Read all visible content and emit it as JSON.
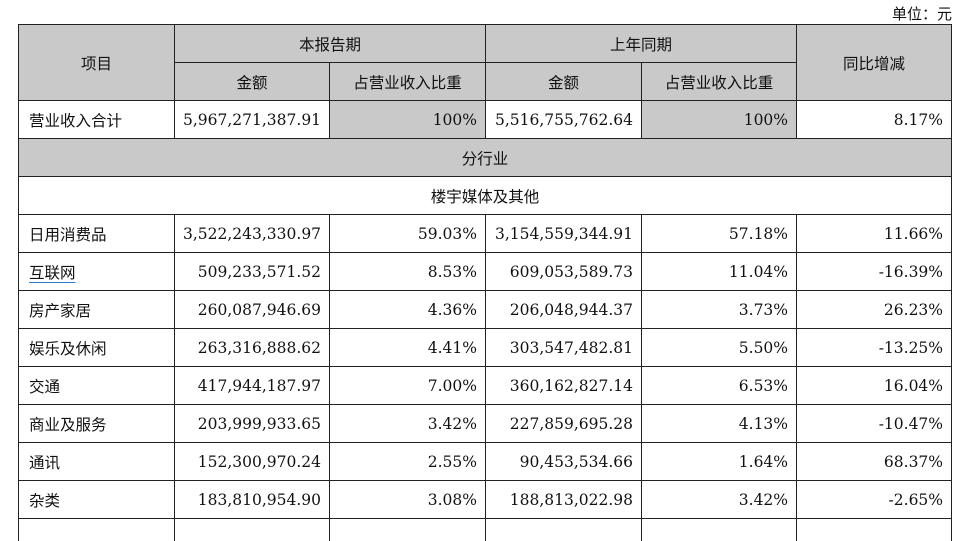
{
  "unit_label": "单位：元",
  "header": {
    "item": "项目",
    "current_period": "本报告期",
    "prior_period": "上年同期",
    "amount": "金额",
    "share": "占营业收入比重",
    "yoy": "同比增减"
  },
  "total": {
    "label": "营业收入合计",
    "cur_amount": "5,967,271,387.91",
    "cur_share": "100%",
    "prev_amount": "5,516,755,762.64",
    "prev_share": "100%",
    "yoy": "8.17%"
  },
  "section_industry": "分行业",
  "subsection": "楼宇媒体及其他",
  "rows": [
    {
      "label": "日用消费品",
      "cur_amount": "3,522,243,330.97",
      "cur_share": "59.03%",
      "prev_amount": "3,154,559,344.91",
      "prev_share": "57.18%",
      "yoy": "11.66%"
    },
    {
      "label": "互联网",
      "cur_amount": "509,233,571.52",
      "cur_share": "8.53%",
      "prev_amount": "609,053,589.73",
      "prev_share": "11.04%",
      "yoy": "-16.39%"
    },
    {
      "label": "房产家居",
      "cur_amount": "260,087,946.69",
      "cur_share": "4.36%",
      "prev_amount": "206,048,944.37",
      "prev_share": "3.73%",
      "yoy": "26.23%"
    },
    {
      "label": "娱乐及休闲",
      "cur_amount": "263,316,888.62",
      "cur_share": "4.41%",
      "prev_amount": "303,547,482.81",
      "prev_share": "5.50%",
      "yoy": "-13.25%"
    },
    {
      "label": "交通",
      "cur_amount": "417,944,187.97",
      "cur_share": "7.00%",
      "prev_amount": "360,162,827.14",
      "prev_share": "6.53%",
      "yoy": "16.04%"
    },
    {
      "label": "商业及服务",
      "cur_amount": "203,999,933.65",
      "cur_share": "3.42%",
      "prev_amount": "227,859,695.28",
      "prev_share": "4.13%",
      "yoy": "-10.47%"
    },
    {
      "label": "通讯",
      "cur_amount": "152,300,970.24",
      "cur_share": "2.55%",
      "prev_amount": "90,453,534.66",
      "prev_share": "1.64%",
      "yoy": "68.37%"
    },
    {
      "label": "杂类",
      "cur_amount": "183,810,954.90",
      "cur_share": "3.08%",
      "prev_amount": "188,813,022.98",
      "prev_share": "3.42%",
      "yoy": "-2.65%"
    }
  ]
}
